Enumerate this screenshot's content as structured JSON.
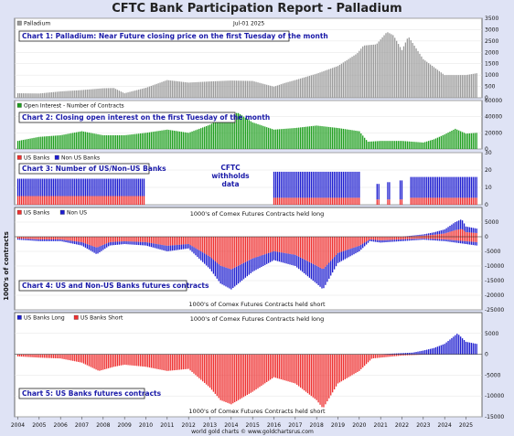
{
  "title": "CFTC Bank Participation Report - Palladium",
  "date_label": "Jul-01 2025",
  "y_axis_title": "1000's of contracts",
  "footer": "world gold charts © www.goldchartsrus.com",
  "x_ticks": [
    "2004",
    "2005",
    "2006",
    "2007",
    "2008",
    "2009",
    "2010",
    "2011",
    "2012",
    "2013",
    "2014",
    "2015",
    "2016",
    "2017",
    "2018",
    "2019",
    "2020",
    "2021",
    "2022",
    "2023",
    "2024",
    "2025"
  ],
  "colors": {
    "gray": "#9a9a9a",
    "green": "#1e9e1e",
    "red": "#ee3030",
    "blue": "#1d1dcf",
    "caption": "#1a1aa8"
  },
  "chart_data": [
    {
      "type": "bar",
      "id": "chart1",
      "caption": "Chart 1: Palladium: Near Future closing price on the first Tuesday of the month",
      "legend": [
        "Palladium"
      ],
      "ylim": [
        0,
        3500
      ],
      "yticks": [
        0,
        500,
        1000,
        1500,
        2000,
        2500,
        3000,
        3500
      ],
      "anchors": [
        [
          2004.0,
          200
        ],
        [
          2005.0,
          190
        ],
        [
          2006.0,
          280
        ],
        [
          2007.0,
          340
        ],
        [
          2008.0,
          420
        ],
        [
          2008.5,
          430
        ],
        [
          2009.0,
          200
        ],
        [
          2010.0,
          440
        ],
        [
          2011.0,
          780
        ],
        [
          2012.0,
          670
        ],
        [
          2013.0,
          720
        ],
        [
          2014.0,
          760
        ],
        [
          2015.0,
          740
        ],
        [
          2016.0,
          490
        ],
        [
          2016.5,
          650
        ],
        [
          2017.0,
          780
        ],
        [
          2018.0,
          1060
        ],
        [
          2019.0,
          1400
        ],
        [
          2019.9,
          1950
        ],
        [
          2020.2,
          2300
        ],
        [
          2020.8,
          2350
        ],
        [
          2021.3,
          2900
        ],
        [
          2021.6,
          2750
        ],
        [
          2022.0,
          2100
        ],
        [
          2022.3,
          2700
        ],
        [
          2023.0,
          1700
        ],
        [
          2024.0,
          1000
        ],
        [
          2025.0,
          1000
        ],
        [
          2025.5,
          1080
        ]
      ]
    },
    {
      "type": "bar",
      "id": "chart2",
      "caption": "Chart 2: Closing open interest on the first Tuesday of the month",
      "legend": [
        "Open Interest - Number of Contracts"
      ],
      "ylim": [
        0,
        60000
      ],
      "yticks": [
        0,
        20000,
        40000,
        60000
      ],
      "anchors": [
        [
          2004.0,
          10000
        ],
        [
          2005.0,
          15000
        ],
        [
          2006.0,
          17000
        ],
        [
          2007.0,
          22000
        ],
        [
          2008.0,
          17000
        ],
        [
          2009.0,
          17000
        ],
        [
          2010.0,
          20000
        ],
        [
          2011.0,
          24000
        ],
        [
          2012.0,
          20000
        ],
        [
          2013.0,
          30000
        ],
        [
          2013.5,
          38000
        ],
        [
          2014.3,
          45000
        ],
        [
          2015.0,
          33000
        ],
        [
          2016.0,
          24000
        ],
        [
          2017.0,
          26000
        ],
        [
          2018.0,
          29000
        ],
        [
          2019.0,
          26000
        ],
        [
          2020.0,
          22000
        ],
        [
          2020.4,
          9000
        ],
        [
          2021.0,
          10000
        ],
        [
          2022.0,
          10000
        ],
        [
          2023.0,
          8000
        ],
        [
          2023.5,
          12000
        ],
        [
          2024.0,
          18000
        ],
        [
          2024.5,
          25000
        ],
        [
          2025.0,
          19000
        ],
        [
          2025.5,
          20000
        ]
      ]
    },
    {
      "type": "bar",
      "id": "chart3",
      "caption": "Chart 3: Number of US/Non-US Banks",
      "legend": [
        "US Banks",
        "Non US Banks"
      ],
      "withheld_note": [
        "CFTC",
        "withholds",
        "data"
      ],
      "ylim": [
        0,
        30
      ],
      "yticks": [
        0,
        10,
        20,
        30
      ],
      "segments": [
        {
          "from": 2004.0,
          "to": 2009.95,
          "us": 5,
          "total": 15
        },
        {
          "from": 2016.0,
          "to": 2020.05,
          "us": 4,
          "total": 19
        },
        {
          "from": 2020.8,
          "to": 2020.95,
          "us": 3,
          "total": 12
        },
        {
          "from": 2021.3,
          "to": 2021.45,
          "us": 3,
          "total": 13
        },
        {
          "from": 2021.9,
          "to": 2022.05,
          "us": 3,
          "total": 14
        },
        {
          "from": 2022.4,
          "to": 2025.55,
          "us": 4,
          "total": 16
        }
      ]
    },
    {
      "type": "bar",
      "id": "chart4",
      "caption": "Chart 4: US and Non-US Banks futures contracts",
      "legend": [
        "US Banks",
        "Non US"
      ],
      "note_top": "1000's of Comex Futures Contracts held long",
      "note_bottom": "1000's of Comex Futures Contracts held short",
      "ylim": [
        -25000,
        10000
      ],
      "yticks": [
        -25000,
        -20000,
        -15000,
        -10000,
        -5000,
        0,
        5000
      ],
      "short_anchors": [
        [
          2004.0,
          -1000
        ],
        [
          2005.0,
          -1500
        ],
        [
          2006.0,
          -1500
        ],
        [
          2007.0,
          -3000
        ],
        [
          2007.7,
          -6000
        ],
        [
          2008.3,
          -3000
        ],
        [
          2009.0,
          -2500
        ],
        [
          2010.0,
          -3000
        ],
        [
          2011.0,
          -5000
        ],
        [
          2012.0,
          -4000
        ],
        [
          2013.0,
          -11000
        ],
        [
          2013.5,
          -16000
        ],
        [
          2014.0,
          -18000
        ],
        [
          2015.0,
          -12000
        ],
        [
          2016.0,
          -8000
        ],
        [
          2017.0,
          -10000
        ],
        [
          2018.0,
          -16000
        ],
        [
          2018.3,
          -18000
        ],
        [
          2019.0,
          -9000
        ],
        [
          2020.0,
          -5000
        ],
        [
          2020.5,
          -1500
        ],
        [
          2021.0,
          -2000
        ],
        [
          2022.0,
          -1500
        ],
        [
          2023.0,
          -1000
        ],
        [
          2024.0,
          -1500
        ],
        [
          2025.0,
          -2500
        ],
        [
          2025.5,
          -3000
        ]
      ],
      "us_share_short": 0.62,
      "long_anchors": [
        [
          2004.0,
          0
        ],
        [
          2022.0,
          0
        ],
        [
          2022.5,
          400
        ],
        [
          2023.0,
          800
        ],
        [
          2023.5,
          1500
        ],
        [
          2024.0,
          2500
        ],
        [
          2024.5,
          5000
        ],
        [
          2024.8,
          6000
        ],
        [
          2025.0,
          3500
        ],
        [
          2025.5,
          2800
        ]
      ],
      "us_share_long": 0.45
    },
    {
      "type": "bar",
      "id": "chart5",
      "caption": "Chart 5: US Banks futures contracts",
      "legend": [
        "US Banks Long",
        "US Banks Short"
      ],
      "note_top": "1000's of Comex Futures Contracts held long",
      "note_bottom": "1000's of Comex Futures Contracts held short",
      "ylim": [
        -15000,
        10000
      ],
      "yticks": [
        -15000,
        -10000,
        -5000,
        0,
        5000
      ],
      "short_anchors": [
        [
          2004.0,
          -500
        ],
        [
          2005.0,
          -800
        ],
        [
          2006.0,
          -1000
        ],
        [
          2007.0,
          -2000
        ],
        [
          2007.8,
          -4000
        ],
        [
          2008.5,
          -3000
        ],
        [
          2009.0,
          -2500
        ],
        [
          2010.0,
          -3000
        ],
        [
          2011.0,
          -4000
        ],
        [
          2012.0,
          -3500
        ],
        [
          2013.0,
          -8000
        ],
        [
          2013.5,
          -11000
        ],
        [
          2014.0,
          -12000
        ],
        [
          2015.0,
          -9000
        ],
        [
          2016.0,
          -5500
        ],
        [
          2017.0,
          -7000
        ],
        [
          2018.0,
          -11000
        ],
        [
          2018.3,
          -13000
        ],
        [
          2019.0,
          -7000
        ],
        [
          2020.0,
          -4000
        ],
        [
          2020.6,
          -1000
        ],
        [
          2021.0,
          -800
        ],
        [
          2022.0,
          -300
        ],
        [
          2023.0,
          -100
        ],
        [
          2024.0,
          0
        ],
        [
          2025.5,
          0
        ]
      ],
      "long_anchors": [
        [
          2004.0,
          0
        ],
        [
          2021.0,
          0
        ],
        [
          2021.5,
          150
        ],
        [
          2022.5,
          400
        ],
        [
          2023.0,
          900
        ],
        [
          2023.5,
          1500
        ],
        [
          2024.0,
          2500
        ],
        [
          2024.6,
          5000
        ],
        [
          2025.0,
          3000
        ],
        [
          2025.5,
          2500
        ]
      ]
    }
  ]
}
